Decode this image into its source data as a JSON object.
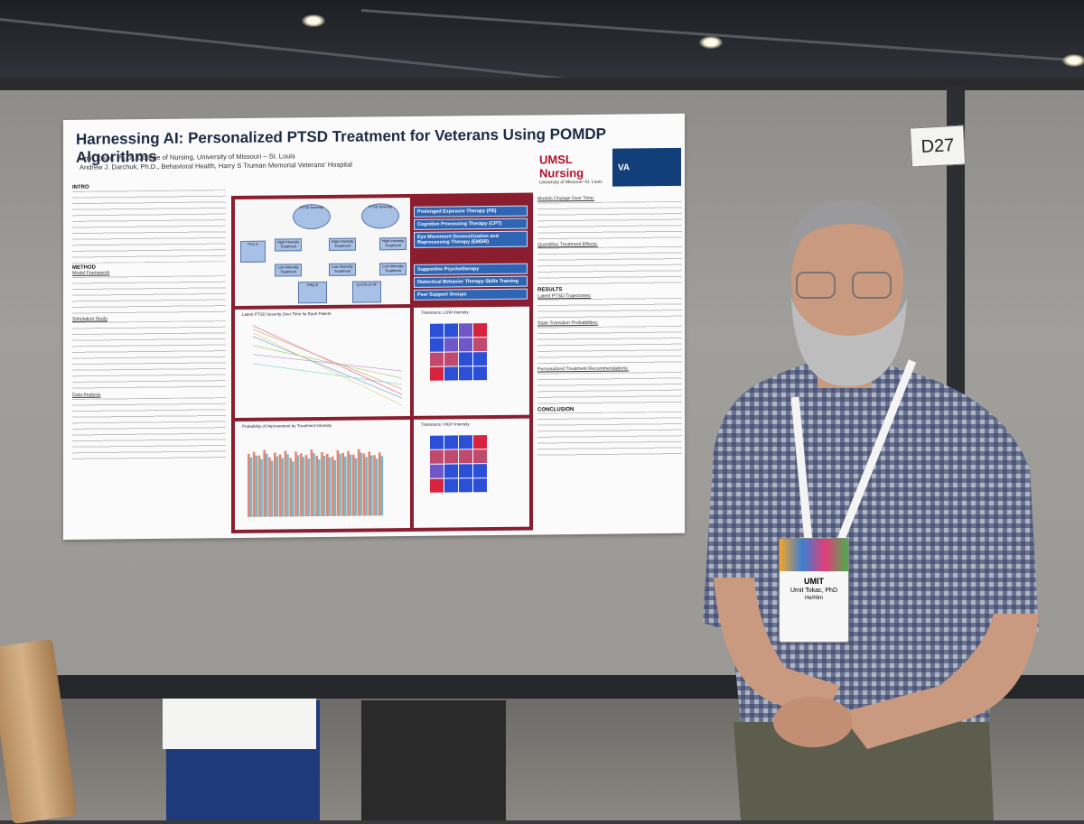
{
  "booth_tag": "D27",
  "poster": {
    "title": "Harnessing AI: Personalized PTSD Treatment for Veterans Using POMDP Algorithms",
    "authors": [
      "Umit Tokac, Ph.D., College of Nursing, University of Missouri – St. Louis",
      "Andrew J. Darchuk, Ph.D., Behavioral Health, Harry S Truman Memorial Veterans' Hospital"
    ],
    "logos": {
      "umsl": "UMSL Nursing",
      "umsl_sub": "University of Missouri–St. Louis",
      "va": "VA"
    },
    "intro_heading": "INTRO",
    "method_heading": "METHOD",
    "model_framework": "Model Framework",
    "simulation_study": "Simulation Study",
    "data_analysis": "Data Analysis",
    "results_heading": "RESULTS",
    "conclusion_heading": "CONCLUSION",
    "latent_trajectories": "Latent PTSD Trajectories:",
    "state_transition": "State Transition Probabilities:",
    "personalized_recs": "Personalized Treatment Recommendations:",
    "models_change": "Models Change Over Time:",
    "quantifies_effects": "Quantifies Treatment Effects:",
    "therapies": [
      "Prolonged Exposure Therapy (PE)",
      "Cognitive Processing Therapy (CPT)",
      "Eye Movement Desensitization and Reprocessing Therapy (EMDR)",
      "Supportive Psychotherapy",
      "Dialectical Behavior Therapy Skills Training",
      "Peer Support Groups"
    ],
    "panels": {
      "trajectory": "Latent PTSD Severity Over Time for Each Patient",
      "improvement": "Probability of Improvement by Treatment Intensity",
      "low": "Transitions: LOW Intensity",
      "high": "Transitions: HIGH Intensity"
    },
    "diagram": {
      "pcl_labels": [
        "PCL-5",
        "PHQ-9",
        "Q-LES-Q-SF"
      ],
      "high": "High Intensity Treatment",
      "low": "Low Intensity Treatment",
      "severity": "PTSD Severity"
    }
  },
  "badge": {
    "name": "UMIT",
    "full": "Umit Tokac, PhD",
    "pronouns": "He/Him"
  }
}
